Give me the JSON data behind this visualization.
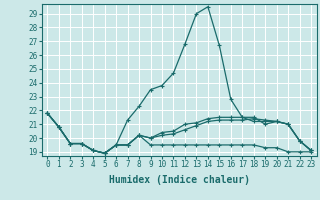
{
  "title": "",
  "xlabel": "Humidex (Indice chaleur)",
  "bg_color": "#cce8e8",
  "grid_color": "#ffffff",
  "line_color": "#1a6b6b",
  "xlim": [
    -0.5,
    23.5
  ],
  "ylim": [
    18.7,
    29.7
  ],
  "yticks": [
    19,
    20,
    21,
    22,
    23,
    24,
    25,
    26,
    27,
    28,
    29
  ],
  "xticks": [
    0,
    1,
    2,
    3,
    4,
    5,
    6,
    7,
    8,
    9,
    10,
    11,
    12,
    13,
    14,
    15,
    16,
    17,
    18,
    19,
    20,
    21,
    22,
    23
  ],
  "series": [
    [
      21.8,
      20.8,
      19.6,
      19.6,
      19.1,
      18.9,
      19.5,
      21.3,
      22.3,
      23.5,
      23.8,
      24.7,
      26.8,
      29.0,
      29.5,
      26.7,
      22.8,
      21.5,
      21.2,
      21.2,
      21.2,
      21.0,
      19.8,
      19.1
    ],
    [
      21.8,
      20.8,
      19.6,
      19.6,
      19.1,
      18.9,
      19.5,
      19.5,
      20.2,
      20.0,
      20.2,
      20.3,
      20.6,
      20.9,
      21.2,
      21.3,
      21.3,
      21.3,
      21.4,
      21.3,
      21.2,
      21.0,
      19.8,
      19.1
    ],
    [
      21.8,
      20.8,
      19.6,
      19.6,
      19.1,
      18.9,
      19.5,
      19.5,
      20.2,
      19.5,
      19.5,
      19.5,
      19.5,
      19.5,
      19.5,
      19.5,
      19.5,
      19.5,
      19.5,
      19.3,
      19.3,
      19.0,
      19.0,
      19.0
    ],
    [
      21.8,
      20.8,
      19.6,
      19.6,
      19.1,
      18.9,
      19.5,
      19.5,
      20.2,
      20.0,
      20.4,
      20.5,
      21.0,
      21.1,
      21.4,
      21.5,
      21.5,
      21.5,
      21.5,
      21.0,
      21.2,
      21.0,
      19.8,
      19.1
    ]
  ],
  "marker": "+",
  "markersize": 3,
  "linewidth": 0.9,
  "xlabel_fontsize": 7,
  "tick_fontsize": 5.5
}
